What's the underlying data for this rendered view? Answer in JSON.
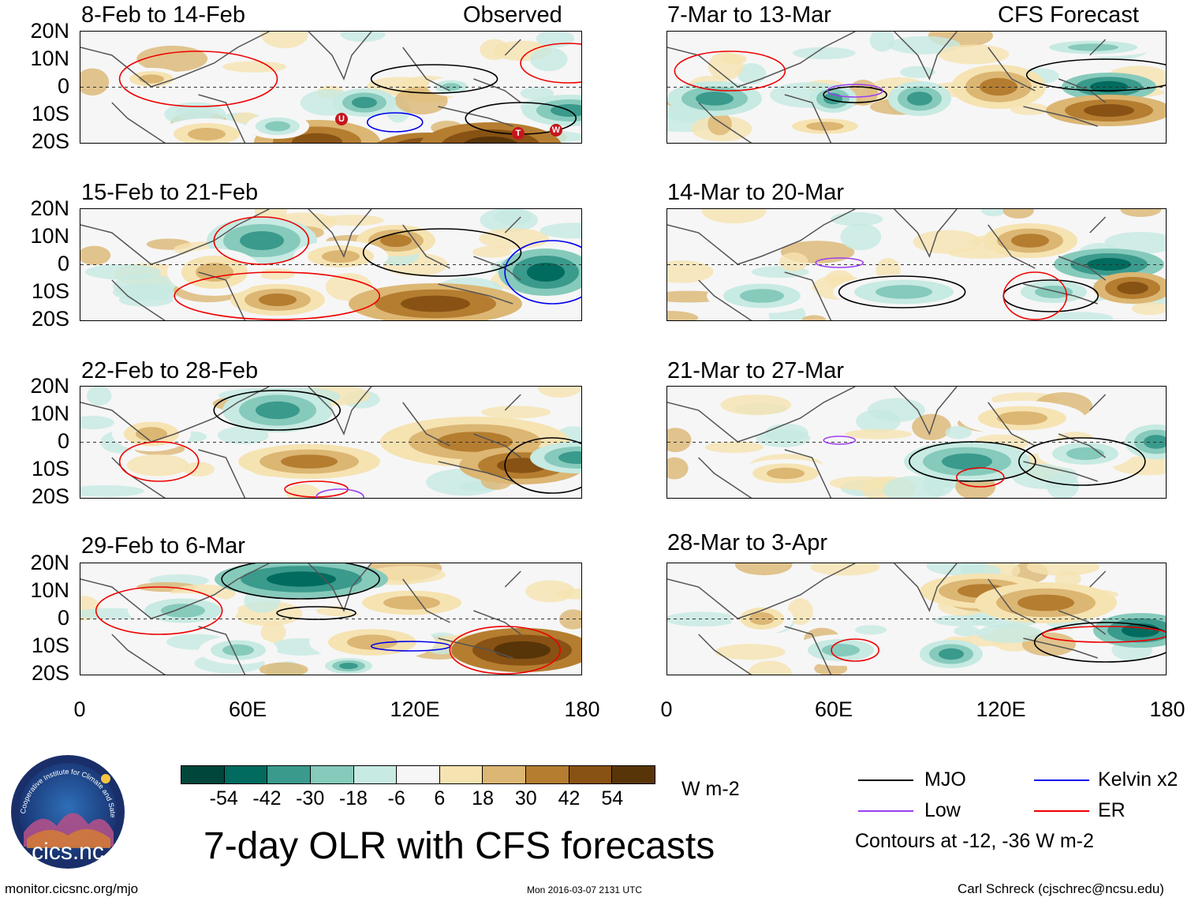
{
  "panels": [
    {
      "id": "p1",
      "title": "8-Feb to 14-Feb",
      "label": "Observed"
    },
    {
      "id": "p2",
      "title": "7-Mar to 13-Mar",
      "label": "CFS Forecast"
    },
    {
      "id": "p3",
      "title": "15-Feb to 21-Feb",
      "label": ""
    },
    {
      "id": "p4",
      "title": "14-Mar to 20-Mar",
      "label": ""
    },
    {
      "id": "p5",
      "title": "22-Feb to 28-Feb",
      "label": ""
    },
    {
      "id": "p6",
      "title": "21-Mar to 27-Mar",
      "label": ""
    },
    {
      "id": "p7",
      "title": "29-Feb to 6-Mar",
      "label": ""
    },
    {
      "id": "p8",
      "title": "28-Mar to 3-Apr",
      "label": ""
    }
  ],
  "lat_labels": [
    "20N",
    "10N",
    "0",
    "10S",
    "20S"
  ],
  "lon_labels": [
    "0",
    "60E",
    "120E",
    "180"
  ],
  "storm_markers": [
    "U",
    "T",
    "W"
  ],
  "colorbar": {
    "labels": [
      "-54",
      "-42",
      "-30",
      "-18",
      "-6",
      "6",
      "18",
      "30",
      "42",
      "54"
    ],
    "units": "W m-2",
    "colors": [
      "#00463a",
      "#006b5e",
      "#3a9a8c",
      "#86cabc",
      "#c7eae2",
      "#f6f6f6",
      "#f6e3b2",
      "#dcb673",
      "#b57d30",
      "#885214",
      "#583508"
    ]
  },
  "legend": {
    "mjo": {
      "label": "MJO",
      "color": "#000000"
    },
    "kelvin": {
      "label": "Kelvin x2",
      "color": "#0000ee"
    },
    "low": {
      "label": "Low",
      "color": "#9a3ff0"
    },
    "er": {
      "label": "ER",
      "color": "#ee0000"
    },
    "contours_note": "Contours at -12, -36 W m-2"
  },
  "logo_text": "cics.nc",
  "logo_arc_text": "Cooperative Institute for Climate and Satellites",
  "main_title": "7-day OLR with CFS forecasts",
  "footer": {
    "left": "monitor.cicsnc.org/mjo",
    "center": "Mon 2016-03-07 2131 UTC",
    "right": "Carl Schreck (cjschrec@ncsu.edu)"
  }
}
